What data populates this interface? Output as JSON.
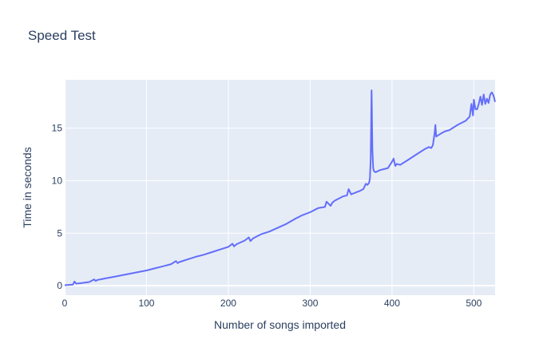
{
  "chart_data": {
    "type": "line",
    "title": "Speed Test",
    "xlabel": "Number of songs imported",
    "ylabel": "Time in seconds",
    "xlim": [
      0,
      526
    ],
    "ylim": [
      -0.9,
      19.6
    ],
    "xticks": [
      0,
      100,
      200,
      300,
      400,
      500
    ],
    "yticks": [
      0,
      5,
      10,
      15
    ],
    "grid": true,
    "legend": "none",
    "colors": {
      "line": "#636efa",
      "plot_bg": "#e5ecf6",
      "grid": "#ffffff",
      "text": "#2a3f5f"
    },
    "series": [
      {
        "x": [
          0,
          10,
          12,
          14,
          20,
          30,
          36,
          38,
          40,
          50,
          60,
          70,
          80,
          90,
          100,
          110,
          120,
          130,
          136,
          138,
          140,
          150,
          160,
          170,
          180,
          190,
          200,
          205,
          207,
          210,
          220,
          225,
          227,
          230,
          240,
          250,
          260,
          270,
          280,
          290,
          300,
          310,
          318,
          320,
          325,
          327,
          330,
          340,
          345,
          347,
          350,
          360,
          365,
          368,
          370,
          372,
          373,
          374,
          375,
          376,
          377,
          378,
          380,
          385,
          390,
          395,
          400,
          402,
          404,
          406,
          410,
          420,
          430,
          440,
          445,
          448,
          450,
          452,
          453,
          454,
          456,
          460,
          465,
          470,
          480,
          485,
          490,
          495,
          497,
          499,
          500,
          502,
          504,
          506,
          508,
          510,
          512,
          514,
          516,
          518,
          520,
          522,
          524,
          526
        ],
        "y": [
          0.05,
          0.1,
          0.4,
          0.2,
          0.25,
          0.35,
          0.6,
          0.45,
          0.55,
          0.7,
          0.85,
          1.0,
          1.15,
          1.3,
          1.45,
          1.65,
          1.85,
          2.05,
          2.35,
          2.15,
          2.25,
          2.5,
          2.75,
          2.95,
          3.2,
          3.45,
          3.7,
          4.0,
          3.75,
          3.95,
          4.3,
          4.6,
          4.25,
          4.5,
          4.9,
          5.15,
          5.5,
          5.85,
          6.3,
          6.7,
          7.0,
          7.4,
          7.5,
          8.0,
          7.6,
          7.9,
          8.1,
          8.5,
          8.6,
          9.2,
          8.7,
          9.0,
          9.2,
          9.7,
          9.6,
          9.8,
          10.2,
          12.0,
          18.6,
          13.0,
          11.2,
          10.9,
          10.8,
          11.0,
          11.1,
          11.2,
          11.8,
          12.1,
          11.4,
          11.6,
          11.5,
          12.0,
          12.5,
          13.0,
          13.2,
          13.1,
          13.4,
          14.5,
          15.3,
          14.2,
          14.3,
          14.5,
          14.7,
          14.8,
          15.3,
          15.5,
          15.7,
          16.1,
          17.3,
          16.2,
          17.7,
          16.8,
          16.8,
          17.3,
          18.0,
          17.2,
          18.2,
          17.3,
          17.8,
          17.4,
          18.2,
          18.4,
          18.1,
          17.5
        ]
      }
    ]
  }
}
